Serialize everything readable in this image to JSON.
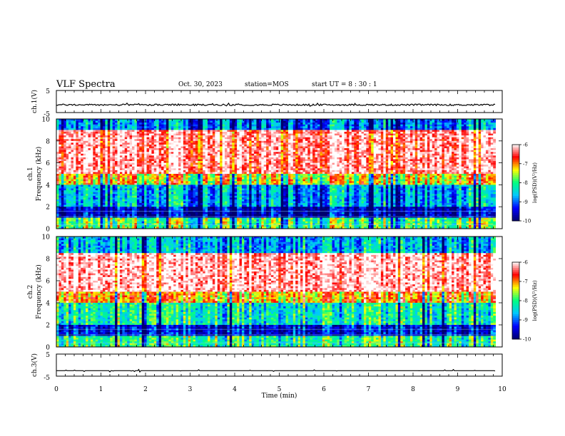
{
  "header": {
    "title": "VLF Spectra",
    "date": "Oct. 30, 2023",
    "station": "station=MOS",
    "start": "start UT =  8 : 30 : 1"
  },
  "chart_data": [
    {
      "type": "line",
      "panel": "ch1-waveform",
      "ylabel": "ch.1(V)",
      "ylim": [
        -5,
        5
      ],
      "yticks": [
        "5",
        "-5"
      ],
      "series": [
        {
          "level": -1.5,
          "noise": "low"
        }
      ]
    },
    {
      "type": "heatmap",
      "panel": "ch1-spectrogram",
      "ylabel": "ch.1\nFrequency (kHz)",
      "ylim": [
        0,
        10
      ],
      "yticks": [
        "0",
        "2",
        "4",
        "6",
        "8",
        "10"
      ],
      "bands": [
        {
          "from": 0,
          "to": 1,
          "level": 0.55
        },
        {
          "from": 1,
          "to": 2,
          "level": 0.12
        },
        {
          "from": 2,
          "to": 4,
          "level": 0.35
        },
        {
          "from": 4,
          "to": 5,
          "level": 0.7
        },
        {
          "from": 5,
          "to": 9,
          "level": 0.95
        },
        {
          "from": 9,
          "to": 10,
          "level": 0.3
        }
      ],
      "colorbar": {
        "label": "log(PSD)(V²/Hz)",
        "ticks": [
          "-6",
          "-7",
          "-8",
          "-9",
          "-10"
        ],
        "range": [
          -10,
          -6
        ]
      }
    },
    {
      "type": "heatmap",
      "panel": "ch2-spectrogram",
      "ylabel": "ch.2\nFrequency (kHz)",
      "ylim": [
        0,
        10
      ],
      "yticks": [
        "0",
        "2",
        "4",
        "6",
        "8",
        "10"
      ],
      "bands": [
        {
          "from": 0,
          "to": 1,
          "level": 0.5
        },
        {
          "from": 1,
          "to": 2,
          "level": 0.15
        },
        {
          "from": 2,
          "to": 4,
          "level": 0.45
        },
        {
          "from": 4,
          "to": 5,
          "level": 0.75
        },
        {
          "from": 5,
          "to": 8.5,
          "level": 0.97
        },
        {
          "from": 8.5,
          "to": 10,
          "level": 0.35
        }
      ],
      "colorbar": {
        "label": "log(PSD)(V²/Hz)",
        "ticks": [
          "-6",
          "-7",
          "-8",
          "-9",
          "-10"
        ],
        "range": [
          -10,
          -6
        ]
      }
    },
    {
      "type": "line",
      "panel": "ch3-waveform",
      "ylabel": "ch.3(V)",
      "ylim": [
        -5,
        5
      ],
      "yticks": [
        "5",
        "-5"
      ],
      "series": [
        {
          "level": -2.5,
          "noise": "none"
        }
      ]
    }
  ],
  "xaxis": {
    "label": "Time (min)",
    "ticks": [
      "0",
      "1",
      "2",
      "3",
      "4",
      "5",
      "6",
      "7",
      "8",
      "9",
      "10"
    ],
    "xlim": [
      0,
      10
    ],
    "data_end": 9.85
  },
  "colors": {
    "colormap": [
      "#00006e",
      "#0000ff",
      "#00c8ff",
      "#00ff80",
      "#ffff00",
      "#ff0000",
      "#ffffff"
    ],
    "axis": "#000000"
  }
}
